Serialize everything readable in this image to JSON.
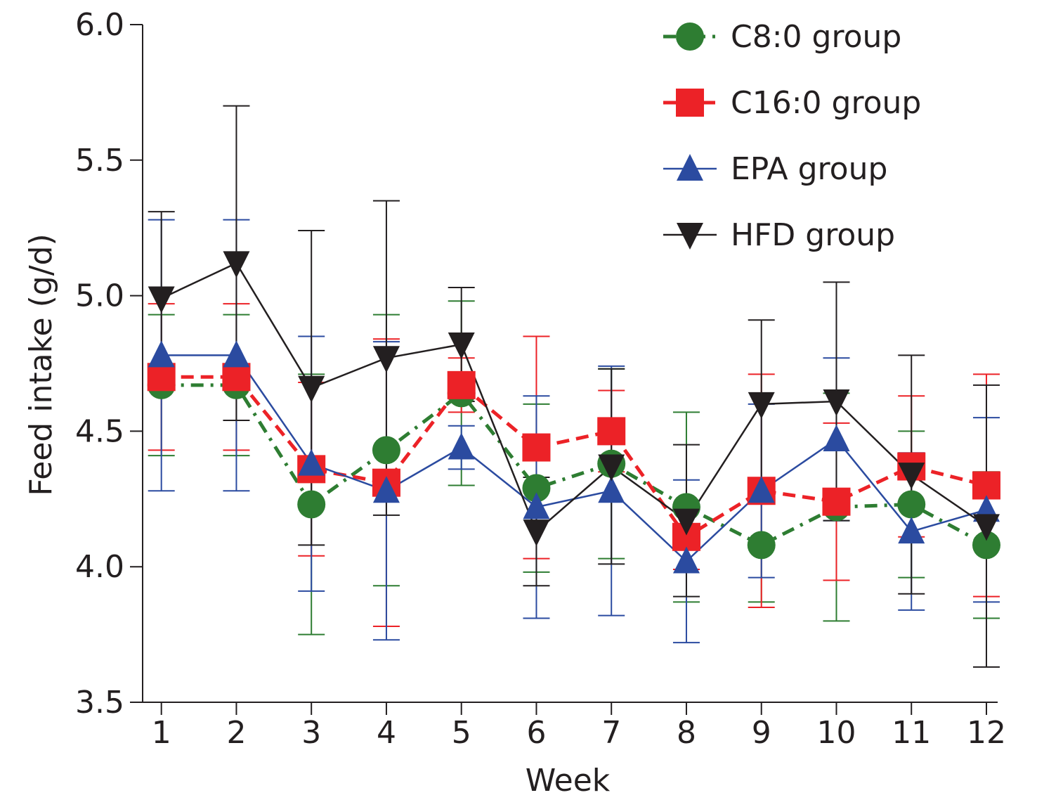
{
  "chart_data": {
    "type": "line",
    "title": "",
    "xlabel": "Week",
    "ylabel": "Feed intake (g/d)",
    "x": [
      1,
      2,
      3,
      4,
      5,
      6,
      7,
      8,
      9,
      10,
      11,
      12
    ],
    "x_tick_labels": [
      "1",
      "2",
      "3",
      "4",
      "5",
      "6",
      "7",
      "8",
      "9",
      "10",
      "11",
      "12"
    ],
    "ylim": [
      3.5,
      6.0
    ],
    "y_ticks": [
      3.5,
      4.0,
      4.5,
      5.0,
      5.5,
      6.0
    ],
    "y_tick_labels": [
      "3.5",
      "4.0",
      "4.5",
      "5.0",
      "5.5",
      "6.0"
    ],
    "grid": false,
    "legend_position": "top-right",
    "series": [
      {
        "name": "C8:0 group",
        "color": "#2e7d32",
        "marker": "circle",
        "line_style": "dash-dot",
        "values": [
          4.67,
          4.67,
          4.23,
          4.43,
          4.64,
          4.29,
          4.38,
          4.22,
          4.08,
          4.22,
          4.23,
          4.08
        ],
        "error": [
          0.26,
          0.26,
          0.48,
          0.5,
          0.34,
          0.31,
          0.35,
          0.35,
          0.21,
          0.42,
          0.27,
          0.27
        ]
      },
      {
        "name": "C16:0 group",
        "color": "#ec2227",
        "marker": "square",
        "line_style": "dashed",
        "values": [
          4.7,
          4.7,
          4.36,
          4.31,
          4.67,
          4.44,
          4.5,
          4.11,
          4.28,
          4.24,
          4.37,
          4.3
        ],
        "error": [
          0.27,
          0.27,
          0.32,
          0.53,
          0.1,
          0.41,
          0.15,
          0.12,
          0.43,
          0.29,
          0.26,
          0.41
        ]
      },
      {
        "name": "EPA group",
        "color": "#2b4ba0",
        "marker": "triangle-up",
        "line_style": "solid",
        "values": [
          4.78,
          4.78,
          4.38,
          4.28,
          4.44,
          4.22,
          4.28,
          4.02,
          4.28,
          4.47,
          4.13,
          4.21
        ],
        "error": [
          0.5,
          0.5,
          0.47,
          0.55,
          0.08,
          0.41,
          0.46,
          0.3,
          0.32,
          0.3,
          0.29,
          0.34
        ]
      },
      {
        "name": "HFD group",
        "color": "#231f20",
        "marker": "triangle-down",
        "line_style": "solid",
        "values": [
          4.99,
          5.12,
          4.66,
          4.77,
          4.82,
          4.13,
          4.37,
          4.17,
          4.6,
          4.61,
          4.34,
          4.15
        ],
        "error": [
          0.32,
          0.58,
          0.58,
          0.58,
          0.21,
          0.2,
          0.36,
          0.28,
          0.31,
          0.44,
          0.44,
          0.52
        ]
      }
    ]
  }
}
